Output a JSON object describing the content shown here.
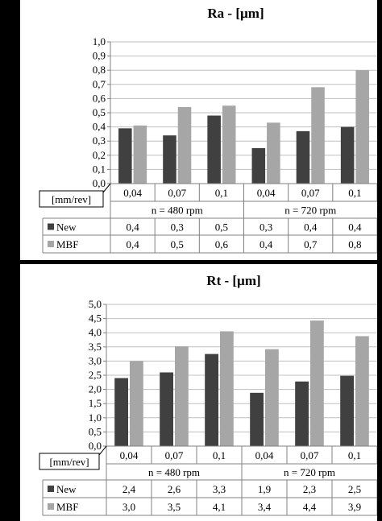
{
  "chart_data": [
    {
      "type": "bar",
      "title": "Ra  - [µm]",
      "xlabel": "[mm/rev]",
      "ylim": [
        0,
        1.0
      ],
      "y_ticks": [
        "0,0",
        "0,1",
        "0,2",
        "0,3",
        "0,4",
        "0,5",
        "0,6",
        "0,7",
        "0,8",
        "0,9",
        "1,0"
      ],
      "categories": [
        "0,04",
        "0,07",
        "0,1",
        "0,04",
        "0,07",
        "0,1"
      ],
      "groups": [
        "n = 480 rpm",
        "n = 720 rpm"
      ],
      "series": [
        {
          "name": "New",
          "color": "#404040",
          "values": [
            0.39,
            0.34,
            0.48,
            0.25,
            0.37,
            0.4
          ],
          "table": [
            "0,4",
            "0,3",
            "0,5",
            "0,3",
            "0,4",
            "0,4"
          ]
        },
        {
          "name": "MBF",
          "color": "#a6a6a6",
          "values": [
            0.41,
            0.54,
            0.55,
            0.43,
            0.68,
            0.8
          ],
          "table": [
            "0,4",
            "0,5",
            "0,6",
            "0,4",
            "0,7",
            "0,8"
          ]
        }
      ],
      "grid": true,
      "legend": "table"
    },
    {
      "type": "bar",
      "title": "Rt - [µm]",
      "xlabel": "[mm/rev]",
      "ylim": [
        0,
        5.0
      ],
      "y_ticks": [
        "0,0",
        "0,5",
        "1,0",
        "1,5",
        "2,0",
        "2,5",
        "3,0",
        "3,5",
        "4,0",
        "4,5",
        "5,0"
      ],
      "categories": [
        "0,04",
        "0,07",
        "0,1",
        "0,04",
        "0,07",
        "0,1"
      ],
      "groups": [
        "n = 480 rpm",
        "n = 720 rpm"
      ],
      "series": [
        {
          "name": "New",
          "color": "#404040",
          "values": [
            2.4,
            2.6,
            3.25,
            1.88,
            2.28,
            2.48
          ],
          "table": [
            "2,4",
            "2,6",
            "3,3",
            "1,9",
            "2,3",
            "2,5"
          ]
        },
        {
          "name": "MBF",
          "color": "#a6a6a6",
          "values": [
            3.0,
            3.52,
            4.05,
            3.42,
            4.43,
            3.88
          ],
          "table": [
            "3,0",
            "3,5",
            "4,1",
            "3,4",
            "4,4",
            "3,9"
          ]
        }
      ],
      "grid": true,
      "legend": "table"
    }
  ]
}
